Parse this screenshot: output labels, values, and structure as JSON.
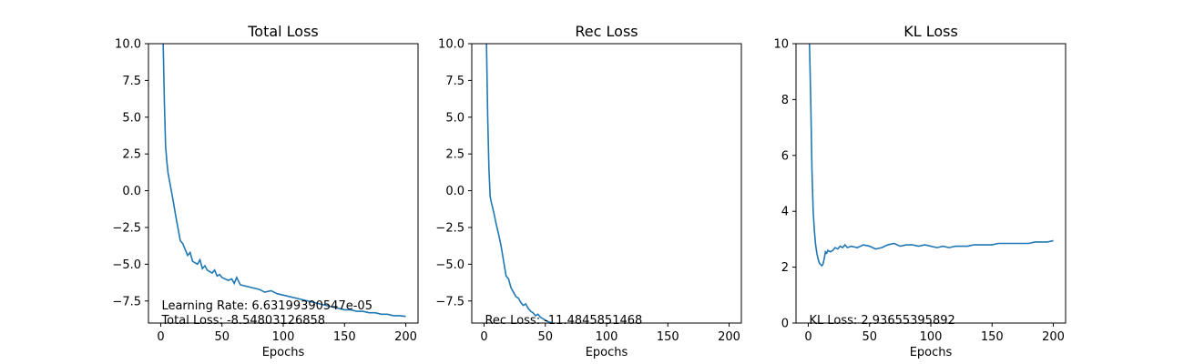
{
  "chart_data": [
    {
      "type": "line",
      "title": "Total Loss",
      "xlabel": "Epochs",
      "ylabel": "",
      "xlim": [
        -10,
        210
      ],
      "ylim": [
        -9.0,
        10.0
      ],
      "xticks": [
        0,
        50,
        100,
        150,
        200
      ],
      "yticks": [
        -7.5,
        -5.0,
        -2.5,
        0.0,
        2.5,
        5.0,
        7.5,
        10.0
      ],
      "ytick_labels": [
        "−7.5",
        "−5.0",
        "−2.5",
        "0.0",
        "2.5",
        "5.0",
        "7.5",
        "10.0"
      ],
      "annotations": [
        "Learning Rate: 6.63199390547e-05",
        "Total Loss: -8.54803126858"
      ],
      "color": "#1f77b4",
      "series": [
        {
          "x": [
            0,
            2,
            3,
            4,
            5,
            6,
            8,
            10,
            12,
            14,
            16,
            18,
            20,
            22,
            24,
            26,
            28,
            30,
            32,
            34,
            36,
            38,
            40,
            42,
            44,
            46,
            48,
            50,
            55,
            58,
            60,
            62,
            65,
            70,
            75,
            80,
            85,
            90,
            95,
            100,
            105,
            110,
            115,
            120,
            125,
            130,
            135,
            140,
            145,
            150,
            155,
            160,
            165,
            170,
            175,
            180,
            185,
            190,
            195,
            200
          ],
          "y": [
            20.0,
            10.0,
            6.0,
            3.0,
            2.0,
            1.2,
            0.3,
            -0.6,
            -1.6,
            -2.5,
            -3.4,
            -3.6,
            -4.0,
            -4.4,
            -4.2,
            -4.8,
            -4.9,
            -5.0,
            -4.7,
            -5.3,
            -5.1,
            -5.4,
            -5.5,
            -5.6,
            -5.4,
            -5.8,
            -5.7,
            -5.9,
            -6.1,
            -6.0,
            -6.3,
            -5.9,
            -6.4,
            -6.5,
            -6.6,
            -6.7,
            -6.9,
            -6.8,
            -7.0,
            -7.1,
            -7.2,
            -7.3,
            -7.4,
            -7.5,
            -7.6,
            -7.7,
            -7.8,
            -7.9,
            -8.0,
            -8.1,
            -8.1,
            -8.2,
            -8.2,
            -8.3,
            -8.3,
            -8.4,
            -8.4,
            -8.5,
            -8.5,
            -8.55
          ]
        }
      ]
    },
    {
      "type": "line",
      "title": "Rec Loss",
      "xlabel": "Epochs",
      "ylabel": "",
      "xlim": [
        -10,
        210
      ],
      "ylim": [
        -9.0,
        10.0
      ],
      "xticks": [
        0,
        50,
        100,
        150,
        200
      ],
      "yticks": [
        -7.5,
        -5.0,
        -2.5,
        0.0,
        2.5,
        5.0,
        7.5,
        10.0
      ],
      "ytick_labels": [
        "−7.5",
        "−5.0",
        "−2.5",
        "0.0",
        "2.5",
        "5.0",
        "7.5",
        "10.0"
      ],
      "annotations": [
        "Rec Loss: -11.4845851468"
      ],
      "color": "#1f77b4",
      "series": [
        {
          "x": [
            0,
            2,
            3,
            4,
            5,
            6,
            8,
            10,
            12,
            14,
            16,
            18,
            20,
            22,
            24,
            26,
            28,
            30,
            32,
            34,
            36,
            38,
            40,
            42,
            44,
            46,
            48,
            50,
            52,
            54,
            56,
            58,
            60
          ],
          "y": [
            20.0,
            10.0,
            5.0,
            1.5,
            -0.4,
            -0.8,
            -1.5,
            -2.3,
            -3.0,
            -3.8,
            -4.8,
            -5.8,
            -6.0,
            -6.6,
            -6.9,
            -7.2,
            -7.3,
            -7.6,
            -7.8,
            -7.7,
            -8.0,
            -8.2,
            -8.3,
            -8.5,
            -8.4,
            -8.6,
            -8.7,
            -8.8,
            -8.9,
            -8.95,
            -9.1,
            -9.3,
            -9.6
          ]
        }
      ]
    },
    {
      "type": "line",
      "title": "KL Loss",
      "xlabel": "Epochs",
      "ylabel": "",
      "xlim": [
        -10,
        210
      ],
      "ylim": [
        0,
        10
      ],
      "xticks": [
        0,
        50,
        100,
        150,
        200
      ],
      "yticks": [
        0,
        2,
        4,
        6,
        8,
        10
      ],
      "ytick_labels": [
        "0",
        "2",
        "4",
        "6",
        "8",
        "10"
      ],
      "annotations": [
        "KL Loss: 2.93655395892"
      ],
      "color": "#1f77b4",
      "series": [
        {
          "x": [
            0,
            1,
            2,
            3,
            4,
            5,
            6,
            7,
            8,
            9,
            10,
            11,
            12,
            13,
            14,
            15,
            16,
            18,
            20,
            22,
            24,
            26,
            28,
            30,
            32,
            35,
            40,
            45,
            50,
            55,
            60,
            65,
            70,
            75,
            80,
            85,
            90,
            95,
            100,
            105,
            110,
            115,
            120,
            125,
            130,
            135,
            140,
            145,
            150,
            155,
            160,
            165,
            170,
            175,
            180,
            185,
            190,
            195,
            200
          ],
          "y": [
            20.0,
            10.0,
            8.0,
            5.5,
            4.0,
            3.3,
            2.8,
            2.5,
            2.3,
            2.15,
            2.1,
            2.05,
            2.1,
            2.3,
            2.55,
            2.5,
            2.6,
            2.55,
            2.6,
            2.7,
            2.65,
            2.75,
            2.7,
            2.8,
            2.7,
            2.75,
            2.7,
            2.8,
            2.75,
            2.65,
            2.7,
            2.8,
            2.85,
            2.75,
            2.8,
            2.8,
            2.75,
            2.8,
            2.75,
            2.7,
            2.75,
            2.7,
            2.75,
            2.75,
            2.75,
            2.8,
            2.8,
            2.8,
            2.8,
            2.85,
            2.85,
            2.85,
            2.85,
            2.85,
            2.85,
            2.9,
            2.9,
            2.9,
            2.95
          ]
        }
      ]
    }
  ]
}
